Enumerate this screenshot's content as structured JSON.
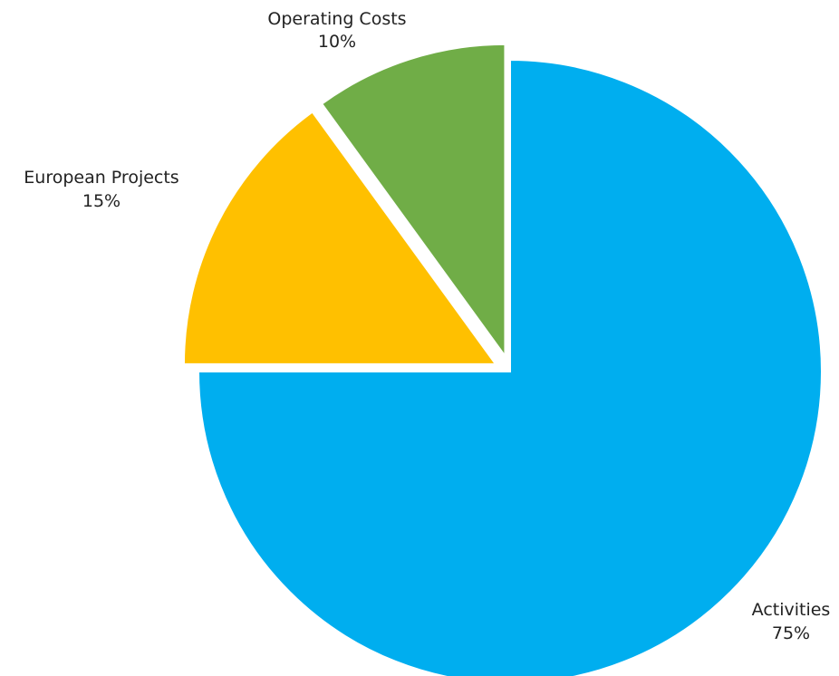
{
  "chart_data": {
    "type": "pie",
    "title": "",
    "legend": "none",
    "slices": [
      {
        "label": "Activities",
        "value": 75,
        "display": "75%",
        "color": "#00AEEF",
        "exploded": false
      },
      {
        "label": "European Projects",
        "value": 15,
        "display": "15%",
        "color": "#FFC000",
        "exploded": true
      },
      {
        "label": "Operating Costs",
        "value": 10,
        "display": "10%",
        "color": "#70AD47",
        "exploded": true
      }
    ]
  }
}
